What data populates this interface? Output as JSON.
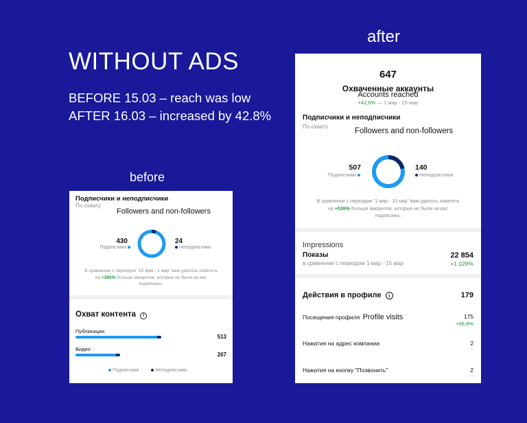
{
  "headline": {
    "title": "WITHOUT ADS",
    "line1": "BEFORE 15.03 – reach was low",
    "line2": "AFTER 16.03 – increased by 42.8%"
  },
  "labels": {
    "after": "after",
    "before": "before"
  },
  "colors": {
    "background": "#19199a",
    "followers": "#1d9bf0",
    "non_followers": "#0c2a6b",
    "positive": "#1a9d3a"
  },
  "before": {
    "section_title": "Подписчики и неподписчики",
    "section_sub": "По охвату",
    "translation": "Followers and non-followers",
    "followers_value": "430",
    "followers_label": "Подписчики",
    "non_followers_value": "24",
    "non_followers_label": "Неподписчики",
    "followers_share": 0.947,
    "compare_line1": "В сравнении с периодом \"15 фев - 1 мар\" вам удалось охватить",
    "compare_pre": "на ",
    "compare_pct": "+380%",
    "compare_post": " больше аккаунтов, которые не были на вас",
    "compare_line3": "подписаны.",
    "reach_title": "Охват контента",
    "rows": [
      {
        "label": "Публикации",
        "value": "513",
        "fraction": 1.0
      },
      {
        "label": "Видео",
        "value": "267",
        "fraction": 0.52
      }
    ],
    "legend_followers": "Подписчики",
    "legend_non_followers": "Неподписчики"
  },
  "after": {
    "accounts_value": "647",
    "accounts_title": "Охваченные аккаунты",
    "accounts_translation": "Accounts reached",
    "accounts_change": "+42,8%",
    "accounts_period": " — 1 мар - 15 мар",
    "section_title": "Подписчики и неподписчики",
    "section_sub": "По охвату",
    "translation": "Followers and non-followers",
    "followers_value": "507",
    "followers_label": "Подписчики",
    "non_followers_value": "140",
    "non_followers_label": "Неподписчики",
    "followers_share": 0.784,
    "compare_line1": "В сравнении с периодом \"1 мар - 15 мар\" вам удалось охватить",
    "compare_pre": "на ",
    "compare_pct": "+536%",
    "compare_post": " больше аккаунтов, которые не были на вас",
    "compare_line3": "подписаны.",
    "impressions_translation": "Impressions",
    "impressions_title": "Показы",
    "impressions_value": "22 854",
    "impressions_compare": "в сравнении с периодом 1 мар - 15 мар",
    "impressions_change": "+1 028%",
    "profile_actions_title": "Действия в профиле",
    "profile_actions_value": "179",
    "profile_visits_label": "Посещения профиля",
    "profile_visits_translation": "Profile visits",
    "profile_visits_value": "175",
    "profile_visits_change": "+98,8%",
    "address_taps_label": "Нажатия на адрес компании",
    "address_taps_value": "2",
    "address_taps_change": "--",
    "call_taps_label": "Нажатия на кнопку \"Позвонить\"",
    "call_taps_value": "2",
    "call_taps_change": "--"
  }
}
